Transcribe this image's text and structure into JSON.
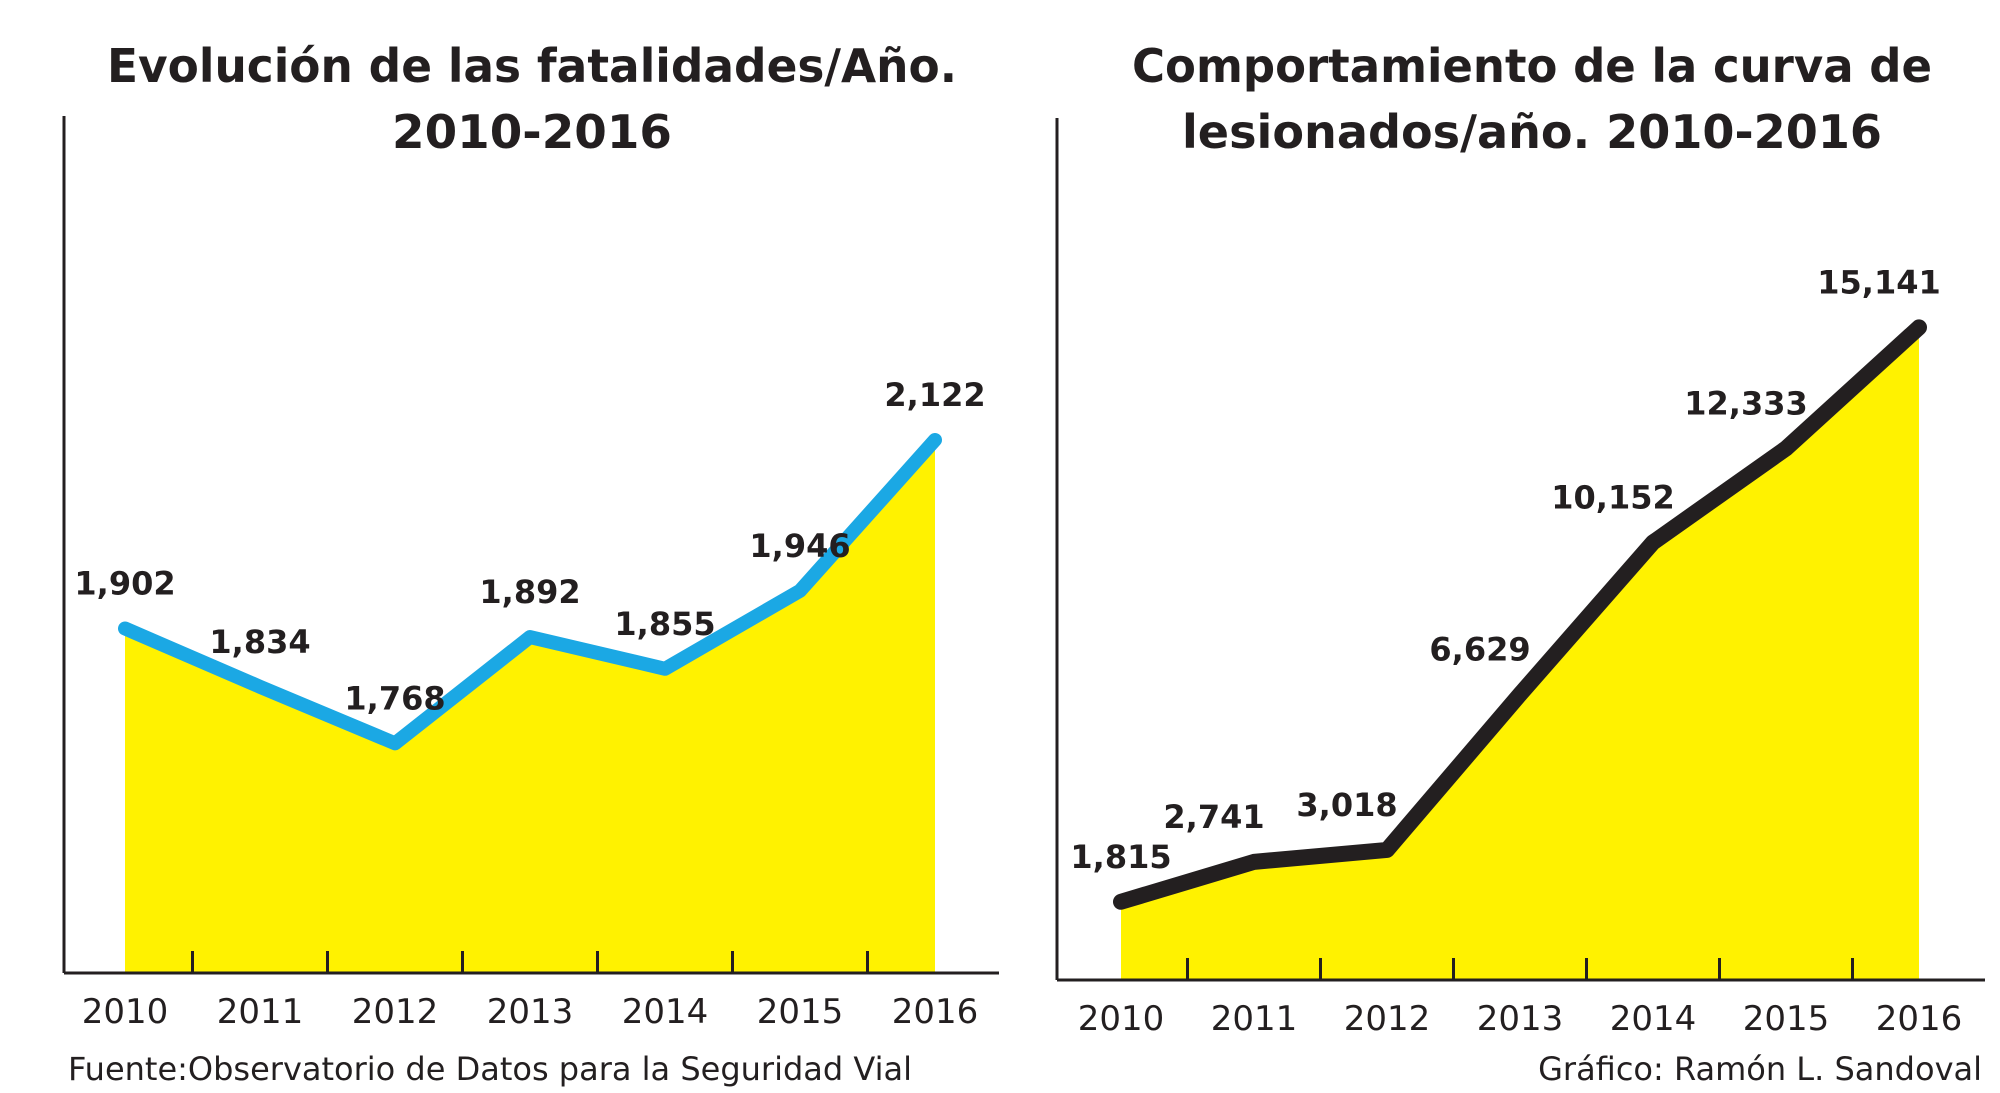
{
  "chart_data": [
    {
      "type": "area",
      "title": [
        "Evolución de las fatalidades/Año.",
        "2010-2016"
      ],
      "categories": [
        "2010",
        "2011",
        "2012",
        "2013",
        "2014",
        "2015",
        "2016"
      ],
      "values": [
        1902,
        1834,
        1768,
        1892,
        1855,
        1946,
        2122
      ],
      "value_labels": [
        "1,902",
        "1,834",
        "1,768",
        "1,892",
        "1,855",
        "1,946",
        "2,122"
      ],
      "color": "#fff200",
      "line_color": "#1ba8e4",
      "ylim": [
        1500,
        2500
      ]
    },
    {
      "type": "area",
      "title": [
        "Comportamiento de la curva de",
        "lesionados/año. 2010-2016"
      ],
      "categories": [
        "2010",
        "2011",
        "2012",
        "2013",
        "2014",
        "2015",
        "2016"
      ],
      "values": [
        1815,
        2741,
        3018,
        6629,
        10152,
        12333,
        15141
      ],
      "value_labels": [
        "1,815",
        "2,741",
        "3,018",
        "6,629",
        "10,152",
        "12,333",
        "15,141"
      ],
      "color": "#fff200",
      "line_color": "#231f20",
      "ylim": [
        0,
        20000
      ]
    }
  ],
  "source": "Fuente:Observatorio de Datos para la Seguridad Vial",
  "credit": "Gráfico: Ramón L. Sandoval"
}
